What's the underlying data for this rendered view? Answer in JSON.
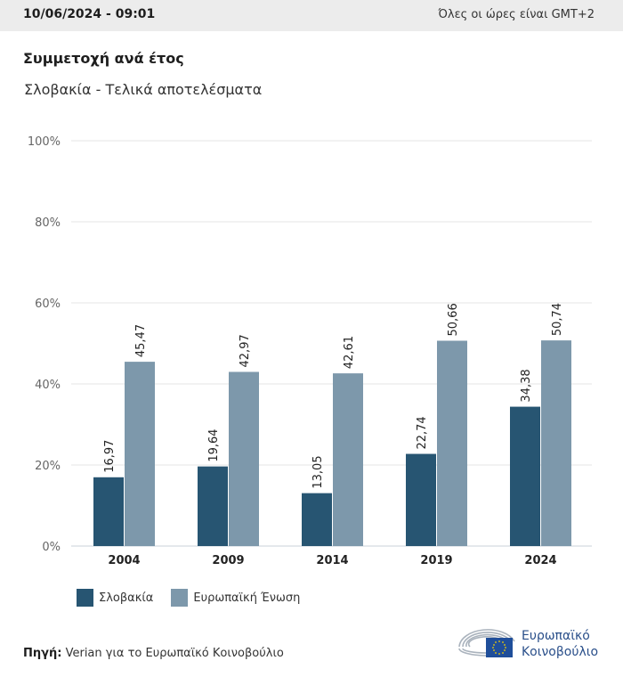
{
  "header": {
    "datetime": "10/06/2024 - 09:01",
    "timezone_note": "Όλες οι ώρες είναι GMT+2"
  },
  "chart_data": {
    "type": "bar",
    "title": "Συμμετοχή ανά έτος",
    "subtitle": "Σλοβακία - Τελικά αποτελέσματα",
    "categories": [
      "2004",
      "2009",
      "2014",
      "2019",
      "2024"
    ],
    "series": [
      {
        "name": "Σλοβακία",
        "color": "#275572",
        "values": [
          16.97,
          19.64,
          13.05,
          22.74,
          34.38
        ],
        "labels": [
          "16,97",
          "19,64",
          "13,05",
          "22,74",
          "34,38"
        ]
      },
      {
        "name": "Ευρωπαϊκή Ένωση",
        "color": "#7d98ab",
        "values": [
          45.47,
          42.97,
          42.61,
          50.66,
          50.74
        ],
        "labels": [
          "45,47",
          "42,97",
          "42,61",
          "50,66",
          "50,74"
        ]
      }
    ],
    "yticks": [
      0,
      20,
      40,
      60,
      80,
      100
    ],
    "ytick_labels": [
      "0%",
      "20%",
      "40%",
      "60%",
      "80%",
      "100%"
    ],
    "ylim": [
      0,
      100
    ],
    "xlabel": "",
    "ylabel": "",
    "grid": true,
    "legend_position": "bottom-left"
  },
  "footer": {
    "source_label": "Πηγή:",
    "source_text": "Verian για το Ευρωπαϊκό Κοινοβούλιο",
    "logo_line1": "Ευρωπαϊκό",
    "logo_line2": "Κοινοβούλιο"
  }
}
